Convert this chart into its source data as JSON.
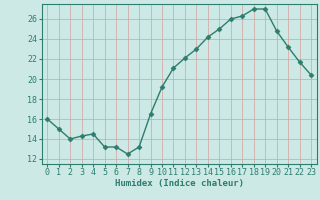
{
  "x": [
    0,
    1,
    2,
    3,
    4,
    5,
    6,
    7,
    8,
    9,
    10,
    11,
    12,
    13,
    14,
    15,
    16,
    17,
    18,
    19,
    20,
    21,
    22,
    23
  ],
  "y": [
    16.0,
    15.0,
    14.0,
    14.3,
    14.5,
    13.2,
    13.2,
    12.5,
    13.2,
    16.5,
    19.2,
    21.1,
    22.1,
    23.0,
    24.2,
    25.0,
    26.0,
    26.3,
    27.0,
    27.0,
    24.8,
    23.2,
    21.7,
    20.4
  ],
  "line_color": "#2d7d6e",
  "marker": "D",
  "marker_size": 2.5,
  "bg_color": "#cce9e5",
  "grid_color": "#d4a0a0",
  "xlabel": "Humidex (Indice chaleur)",
  "ylim": [
    11.5,
    27.5
  ],
  "xlim": [
    -0.5,
    23.5
  ],
  "yticks": [
    12,
    14,
    16,
    18,
    20,
    22,
    24,
    26
  ],
  "xticks": [
    0,
    1,
    2,
    3,
    4,
    5,
    6,
    7,
    8,
    9,
    10,
    11,
    12,
    13,
    14,
    15,
    16,
    17,
    18,
    19,
    20,
    21,
    22,
    23
  ],
  "font_size_xlabel": 6.5,
  "font_size_ticks": 6.0,
  "linewidth": 1.0,
  "spine_color": "#2d7d6e"
}
